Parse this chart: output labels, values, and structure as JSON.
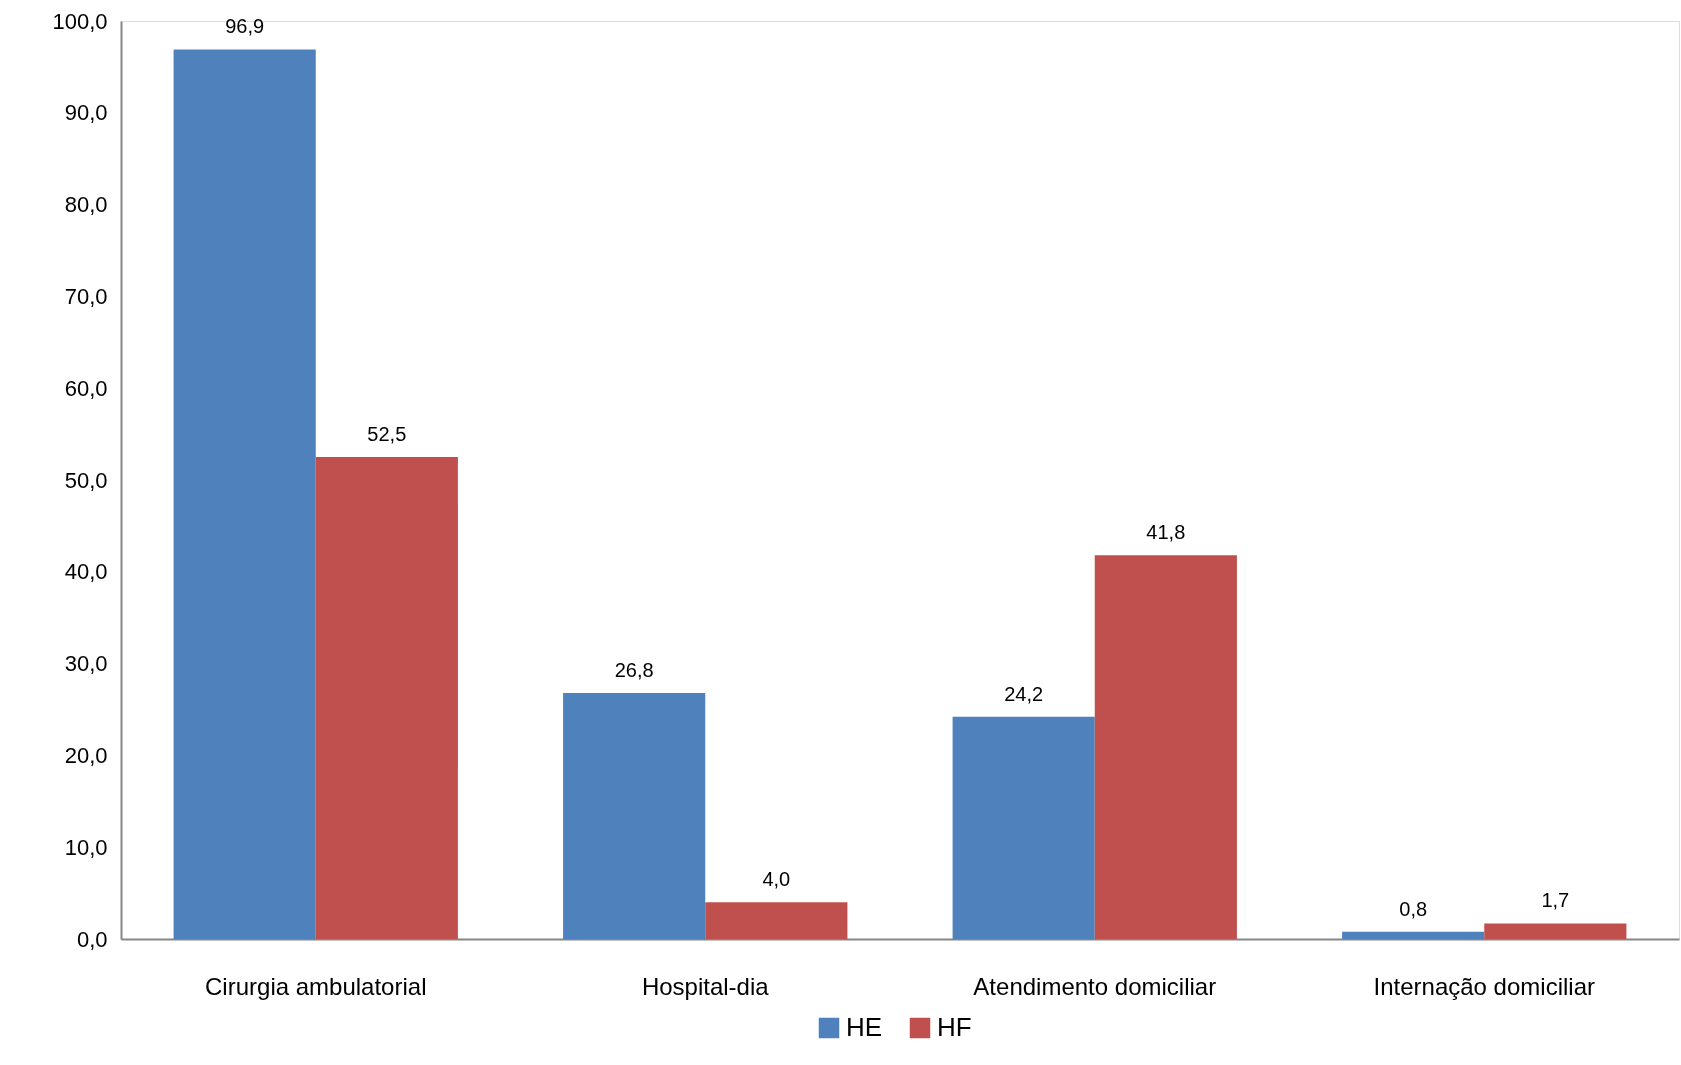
{
  "chart_data": {
    "type": "bar",
    "categories": [
      "Cirurgia ambulatorial",
      "Hospital-dia",
      "Atendimento domiciliar",
      "Internação domiciliar"
    ],
    "series": [
      {
        "name": "HE",
        "color": "#4f81bd",
        "values": [
          96.9,
          26.8,
          24.2,
          0.8
        ],
        "value_labels": [
          "96,9",
          "26,8",
          "24,2",
          "0,8"
        ]
      },
      {
        "name": "HF",
        "color": "#c0504d",
        "values": [
          52.5,
          4.0,
          41.8,
          1.7
        ],
        "value_labels": [
          "52,5",
          "4,0",
          "41,8",
          "1,7"
        ]
      }
    ],
    "ylim": [
      0,
      100
    ],
    "yticks": [
      {
        "value": 0,
        "label": "0,0"
      },
      {
        "value": 10,
        "label": "10,0"
      },
      {
        "value": 20,
        "label": "20,0"
      },
      {
        "value": 30,
        "label": "30,0"
      },
      {
        "value": 40,
        "label": "40,0"
      },
      {
        "value": 50,
        "label": "50,0"
      },
      {
        "value": 60,
        "label": "60,0"
      },
      {
        "value": 70,
        "label": "70,0"
      },
      {
        "value": 80,
        "label": "80,0"
      },
      {
        "value": 90,
        "label": "90,0"
      },
      {
        "value": 100,
        "label": "100,0"
      }
    ],
    "grid": false,
    "legend": "bottom"
  }
}
